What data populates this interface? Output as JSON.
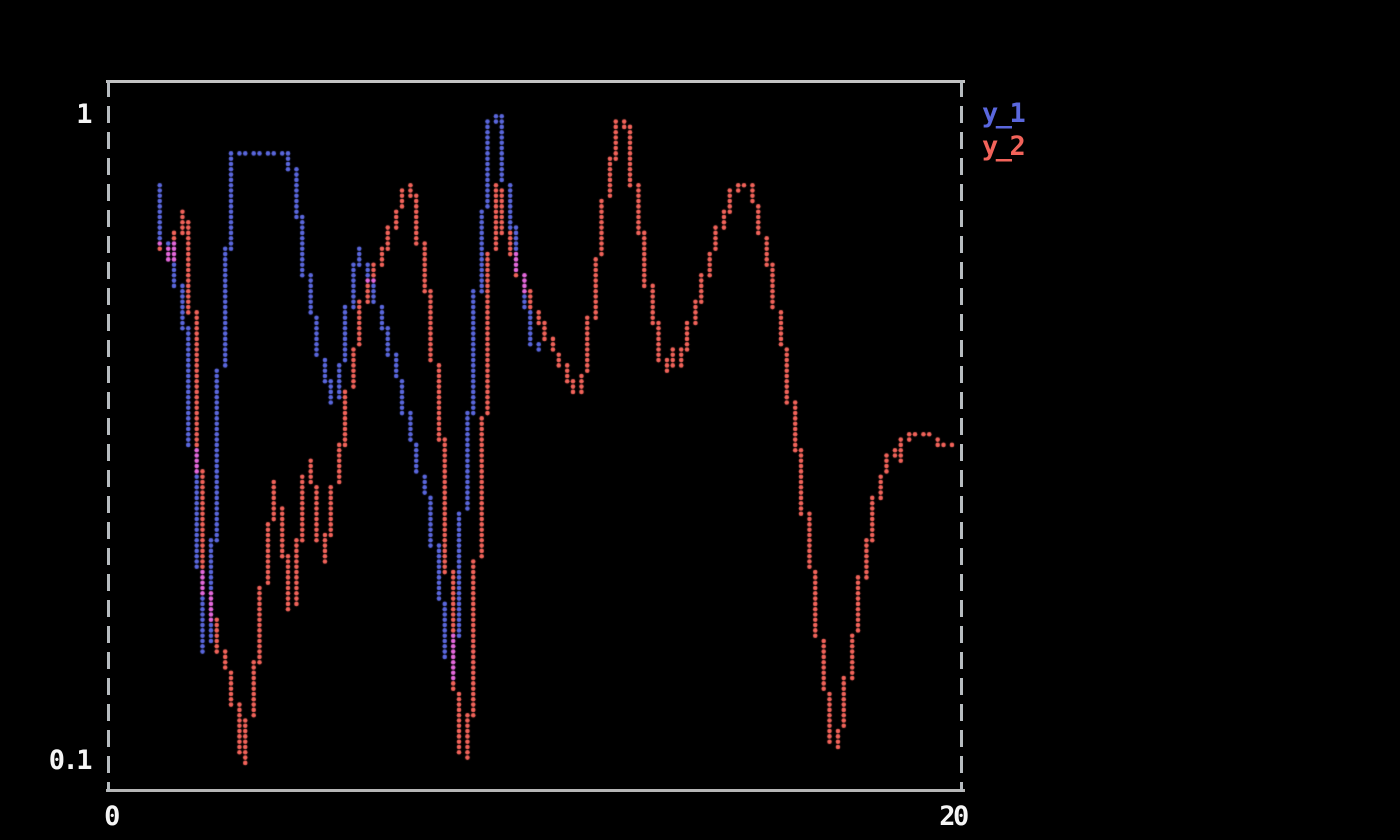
{
  "chart_data": {
    "type": "scatter",
    "title": "",
    "xlabel": "",
    "ylabel": "",
    "xlim": [
      0,
      20
    ],
    "ylim": [
      0.1,
      1
    ],
    "yscale": "log",
    "x_ticks": [
      "0",
      "20"
    ],
    "y_ticks": [
      "1",
      "0.1"
    ],
    "grid": false,
    "legend_position": "outside-top-right",
    "background_color": "#000000",
    "axes_color": "#c3c3c3",
    "marker_style": "braille-dots",
    "overlap_color": "#e468dc",
    "series": [
      {
        "name": "y_1",
        "color": "#5a67dd",
        "points": [
          [
            1.27,
            0.78
          ],
          [
            1.3,
            0.7
          ],
          [
            1.33,
            0.63
          ],
          [
            1.42,
            0.6
          ],
          [
            1.52,
            0.63
          ],
          [
            1.62,
            0.57
          ],
          [
            1.72,
            0.51
          ],
          [
            1.82,
            0.46
          ],
          [
            1.9,
            0.4
          ],
          [
            2.0,
            0.305
          ],
          [
            2.08,
            0.24
          ],
          [
            2.16,
            0.19
          ],
          [
            2.24,
            0.16
          ],
          [
            2.32,
            0.148
          ],
          [
            2.42,
            0.18
          ],
          [
            2.52,
            0.25
          ],
          [
            2.62,
            0.35
          ],
          [
            2.72,
            0.48
          ],
          [
            2.82,
            0.63
          ],
          [
            2.92,
            0.79
          ],
          [
            2.98,
            0.875
          ],
          [
            4.28,
            0.875
          ],
          [
            4.4,
            0.76
          ],
          [
            4.55,
            0.64
          ],
          [
            4.7,
            0.545
          ],
          [
            4.85,
            0.47
          ],
          [
            5.0,
            0.42
          ],
          [
            5.15,
            0.385
          ],
          [
            5.3,
            0.355
          ],
          [
            5.45,
            0.4
          ],
          [
            5.6,
            0.47
          ],
          [
            5.75,
            0.555
          ],
          [
            5.85,
            0.615
          ],
          [
            6.0,
            0.58
          ],
          [
            6.15,
            0.55
          ],
          [
            6.3,
            0.515
          ],
          [
            6.45,
            0.475
          ],
          [
            6.6,
            0.44
          ],
          [
            6.75,
            0.405
          ],
          [
            6.9,
            0.37
          ],
          [
            7.05,
            0.335
          ],
          [
            7.2,
            0.3
          ],
          [
            7.35,
            0.275
          ],
          [
            7.5,
            0.255
          ],
          [
            7.65,
            0.22
          ],
          [
            7.8,
            0.18
          ],
          [
            7.95,
            0.15
          ],
          [
            8.08,
            0.135
          ],
          [
            8.2,
            0.175
          ],
          [
            8.32,
            0.235
          ],
          [
            8.45,
            0.32
          ],
          [
            8.58,
            0.44
          ],
          [
            8.7,
            0.57
          ],
          [
            8.82,
            0.72
          ],
          [
            8.92,
            0.86
          ],
          [
            9.0,
            0.98
          ],
          [
            9.14,
            1.0
          ],
          [
            9.22,
            0.9
          ],
          [
            9.32,
            0.8
          ],
          [
            9.45,
            0.69
          ],
          [
            9.6,
            0.6
          ],
          [
            9.75,
            0.53
          ],
          [
            9.9,
            0.465
          ],
          [
            10.02,
            0.435
          ]
        ]
      },
      {
        "name": "y_2",
        "color": "#f2635a",
        "points": [
          [
            1.3,
            0.625
          ],
          [
            1.42,
            0.595
          ],
          [
            1.55,
            0.605
          ],
          [
            1.65,
            0.65
          ],
          [
            1.75,
            0.7
          ],
          [
            1.85,
            0.68
          ],
          [
            1.95,
            0.6
          ],
          [
            2.02,
            0.46
          ],
          [
            2.1,
            0.33
          ],
          [
            2.2,
            0.235
          ],
          [
            2.3,
            0.185
          ],
          [
            2.4,
            0.172
          ],
          [
            2.5,
            0.163
          ],
          [
            2.62,
            0.152
          ],
          [
            2.74,
            0.142
          ],
          [
            2.86,
            0.135
          ],
          [
            2.95,
            0.132
          ],
          [
            3.02,
            0.118
          ],
          [
            3.1,
            0.105
          ],
          [
            3.2,
            0.1
          ],
          [
            3.3,
            0.112
          ],
          [
            3.42,
            0.13
          ],
          [
            3.55,
            0.158
          ],
          [
            3.68,
            0.19
          ],
          [
            3.8,
            0.23
          ],
          [
            3.92,
            0.268
          ],
          [
            4.02,
            0.24
          ],
          [
            4.12,
            0.213
          ],
          [
            4.22,
            0.19
          ],
          [
            4.32,
            0.172
          ],
          [
            4.45,
            0.21
          ],
          [
            4.6,
            0.255
          ],
          [
            4.72,
            0.29
          ],
          [
            4.85,
            0.26
          ],
          [
            4.95,
            0.23
          ],
          [
            5.05,
            0.205
          ],
          [
            5.18,
            0.228
          ],
          [
            5.3,
            0.26
          ],
          [
            5.45,
            0.3
          ],
          [
            5.6,
            0.35
          ],
          [
            5.75,
            0.41
          ],
          [
            5.9,
            0.48
          ],
          [
            6.05,
            0.53
          ],
          [
            6.2,
            0.565
          ],
          [
            6.35,
            0.59
          ],
          [
            6.5,
            0.625
          ],
          [
            6.65,
            0.665
          ],
          [
            6.8,
            0.71
          ],
          [
            6.95,
            0.755
          ],
          [
            7.08,
            0.775
          ],
          [
            7.2,
            0.73
          ],
          [
            7.32,
            0.645
          ],
          [
            7.45,
            0.55
          ],
          [
            7.6,
            0.46
          ],
          [
            7.75,
            0.36
          ],
          [
            7.88,
            0.27
          ],
          [
            8.0,
            0.195
          ],
          [
            8.1,
            0.14
          ],
          [
            8.22,
            0.112
          ],
          [
            8.35,
            0.102
          ],
          [
            8.48,
            0.118
          ],
          [
            8.58,
            0.155
          ],
          [
            8.68,
            0.215
          ],
          [
            8.78,
            0.305
          ],
          [
            8.88,
            0.43
          ],
          [
            8.97,
            0.57
          ],
          [
            9.05,
            0.7
          ],
          [
            9.12,
            0.78
          ],
          [
            9.2,
            0.73
          ],
          [
            9.32,
            0.66
          ],
          [
            9.45,
            0.615
          ],
          [
            9.6,
            0.575
          ],
          [
            9.75,
            0.54
          ],
          [
            9.9,
            0.515
          ],
          [
            10.05,
            0.49
          ],
          [
            10.2,
            0.468
          ],
          [
            10.35,
            0.448
          ],
          [
            10.5,
            0.428
          ],
          [
            10.65,
            0.408
          ],
          [
            10.8,
            0.385
          ],
          [
            10.88,
            0.375
          ],
          [
            10.96,
            0.385
          ],
          [
            11.05,
            0.375
          ],
          [
            11.2,
            0.41
          ],
          [
            11.3,
            0.46
          ],
          [
            11.4,
            0.53
          ],
          [
            11.5,
            0.62
          ],
          [
            11.6,
            0.7
          ],
          [
            11.72,
            0.78
          ],
          [
            11.82,
            0.86
          ],
          [
            11.92,
            0.93
          ],
          [
            12.0,
            0.975
          ],
          [
            12.12,
            0.98
          ],
          [
            12.22,
            0.9
          ],
          [
            12.32,
            0.79
          ],
          [
            12.45,
            0.68
          ],
          [
            12.58,
            0.585
          ],
          [
            12.72,
            0.515
          ],
          [
            12.86,
            0.455
          ],
          [
            13.0,
            0.415
          ],
          [
            13.08,
            0.4
          ],
          [
            13.2,
            0.43
          ],
          [
            13.32,
            0.405
          ],
          [
            13.45,
            0.43
          ],
          [
            13.58,
            0.455
          ],
          [
            13.72,
            0.49
          ],
          [
            13.86,
            0.525
          ],
          [
            14.0,
            0.565
          ],
          [
            14.15,
            0.615
          ],
          [
            14.3,
            0.655
          ],
          [
            14.45,
            0.7
          ],
          [
            14.6,
            0.745
          ],
          [
            14.75,
            0.775
          ],
          [
            14.9,
            0.78
          ],
          [
            15.05,
            0.765
          ],
          [
            15.18,
            0.715
          ],
          [
            15.32,
            0.655
          ],
          [
            15.46,
            0.595
          ],
          [
            15.6,
            0.53
          ],
          [
            15.75,
            0.465
          ],
          [
            15.9,
            0.4
          ],
          [
            16.05,
            0.34
          ],
          [
            16.2,
            0.285
          ],
          [
            16.35,
            0.235
          ],
          [
            16.5,
            0.193
          ],
          [
            16.65,
            0.158
          ],
          [
            16.8,
            0.13
          ],
          [
            16.92,
            0.112
          ],
          [
            17.02,
            0.106
          ],
          [
            17.14,
            0.112
          ],
          [
            17.28,
            0.128
          ],
          [
            17.42,
            0.148
          ],
          [
            17.56,
            0.172
          ],
          [
            17.7,
            0.198
          ],
          [
            17.84,
            0.225
          ],
          [
            17.98,
            0.252
          ],
          [
            18.12,
            0.275
          ],
          [
            18.26,
            0.295
          ],
          [
            18.4,
            0.305
          ],
          [
            18.5,
            0.292
          ],
          [
            18.62,
            0.305
          ],
          [
            18.74,
            0.322
          ],
          [
            19.3,
            0.322
          ],
          [
            19.42,
            0.306
          ],
          [
            19.72,
            0.306
          ]
        ]
      }
    ]
  }
}
